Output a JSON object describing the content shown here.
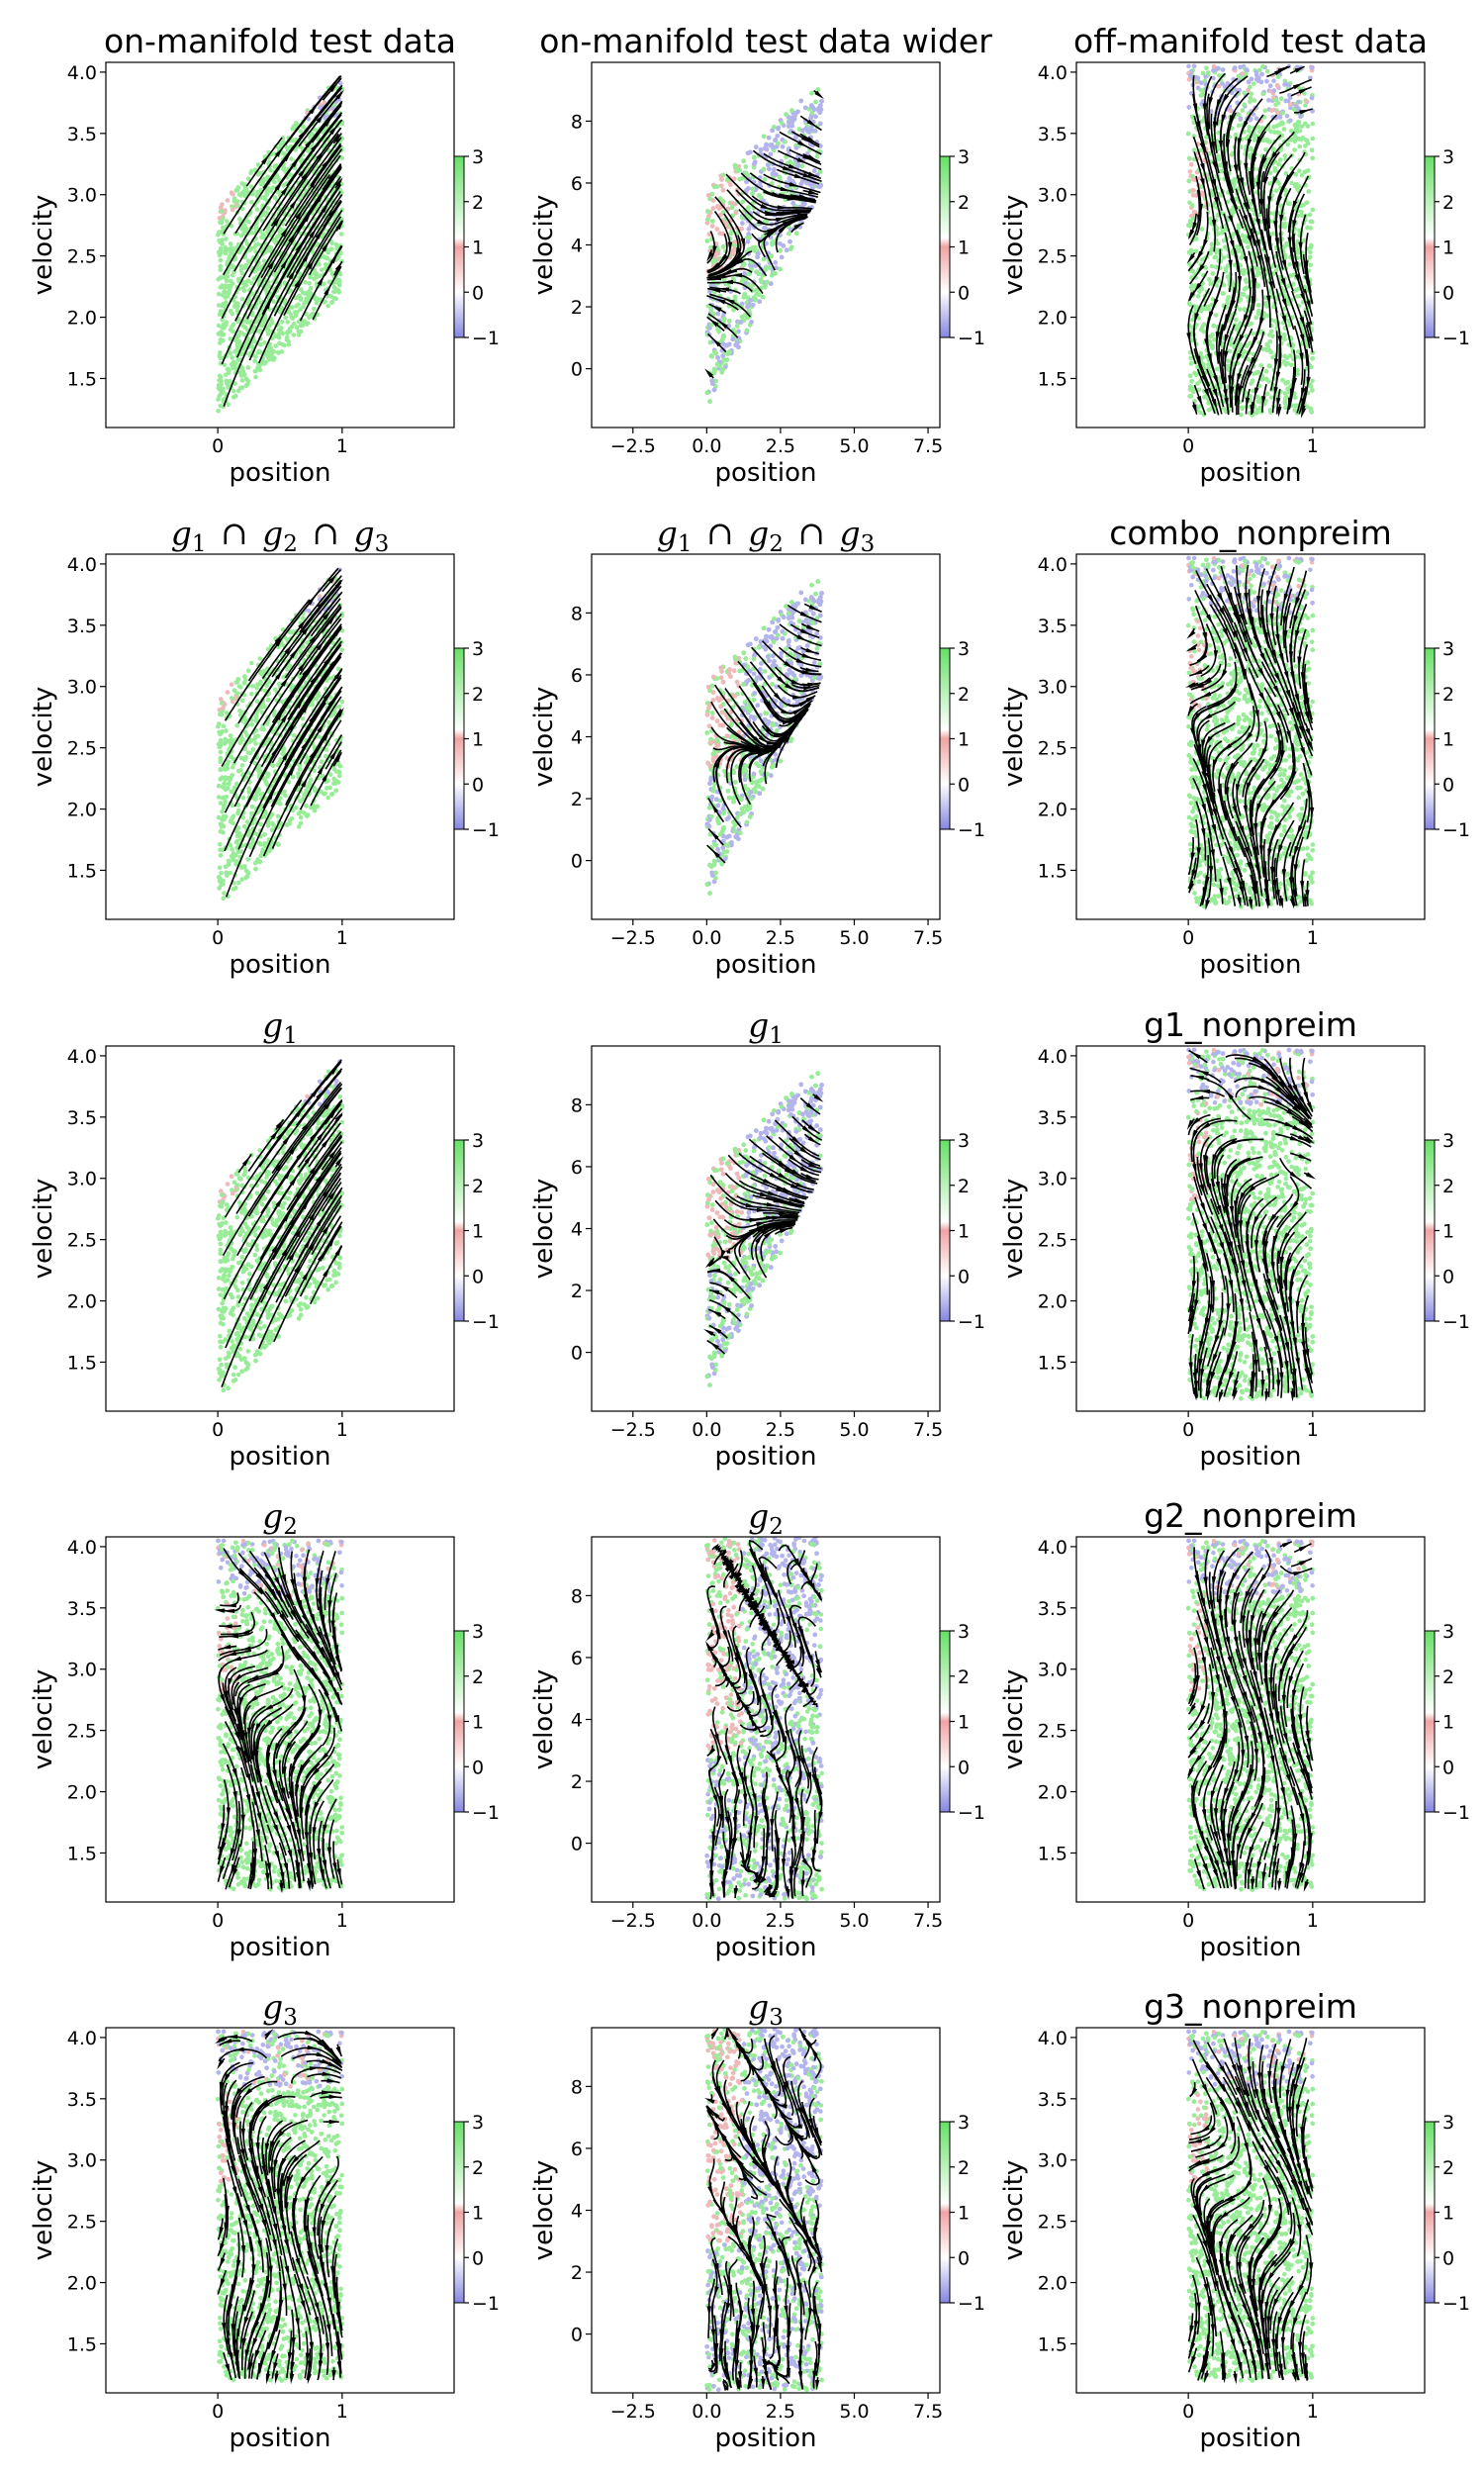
{
  "chart_data": {
    "type": "streamplot-grid",
    "xlabel": "position",
    "ylabel": "velocity",
    "colorbar_ticks": [
      "3",
      "2",
      "1",
      "0",
      "−1"
    ],
    "colorbar_range": [
      -1,
      3
    ],
    "colors": {
      "green": "#44dd44",
      "pink": "#e08080",
      "blue": "#7777dd",
      "stream": "#000000"
    },
    "narrow_x_ticks": [
      "0",
      "1"
    ],
    "narrow_y_ticks": [
      "4.0",
      "3.5",
      "3.0",
      "2.5",
      "2.0",
      "1.5"
    ],
    "wide_x_ticks": [
      "−2.5",
      "0.0",
      "2.5",
      "5.0",
      "7.5"
    ],
    "wide_y_ticks": [
      "8",
      "6",
      "4",
      "2",
      "0"
    ],
    "panels": [
      {
        "title": "on-manifold test data",
        "title_style": "text",
        "axes": "narrow",
        "region": "diag",
        "field": "diag"
      },
      {
        "title": "on-manifold test data wider",
        "title_style": "text",
        "axes": "wide",
        "region": "wide",
        "field": "wide"
      },
      {
        "title": "off-manifold test data",
        "title_style": "text",
        "axes": "narrow",
        "region": "rect",
        "field": "noisy"
      },
      {
        "title": "g1 ∩ g2 ∩ g3",
        "title_style": "math",
        "axes": "narrow",
        "region": "diag",
        "field": "diag"
      },
      {
        "title": "g1 ∩ g2 ∩ g3",
        "title_style": "math",
        "axes": "wide",
        "region": "wide",
        "field": "wide"
      },
      {
        "title": "combo_nonpreim",
        "title_style": "text",
        "axes": "narrow",
        "region": "rect",
        "field": "noisy"
      },
      {
        "title": "g1",
        "title_style": "math",
        "axes": "narrow",
        "region": "diag",
        "field": "diag"
      },
      {
        "title": "g1",
        "title_style": "math",
        "axes": "wide",
        "region": "wide",
        "field": "wide"
      },
      {
        "title": "g1_nonpreim",
        "title_style": "text",
        "axes": "narrow",
        "region": "rect",
        "field": "noisy"
      },
      {
        "title": "g2",
        "title_style": "math",
        "axes": "narrow",
        "region": "rect",
        "field": "noisy"
      },
      {
        "title": "g2",
        "title_style": "math",
        "axes": "wide",
        "region": "widerect",
        "field": "noisy"
      },
      {
        "title": "g2_nonpreim",
        "title_style": "text",
        "axes": "narrow",
        "region": "rect",
        "field": "noisy"
      },
      {
        "title": "g3",
        "title_style": "math",
        "axes": "narrow",
        "region": "rect",
        "field": "noisy"
      },
      {
        "title": "g3",
        "title_style": "math",
        "axes": "wide",
        "region": "widerect",
        "field": "noisy"
      },
      {
        "title": "g3_nonpreim",
        "title_style": "text",
        "axes": "narrow",
        "region": "rect",
        "field": "noisy"
      }
    ]
  }
}
